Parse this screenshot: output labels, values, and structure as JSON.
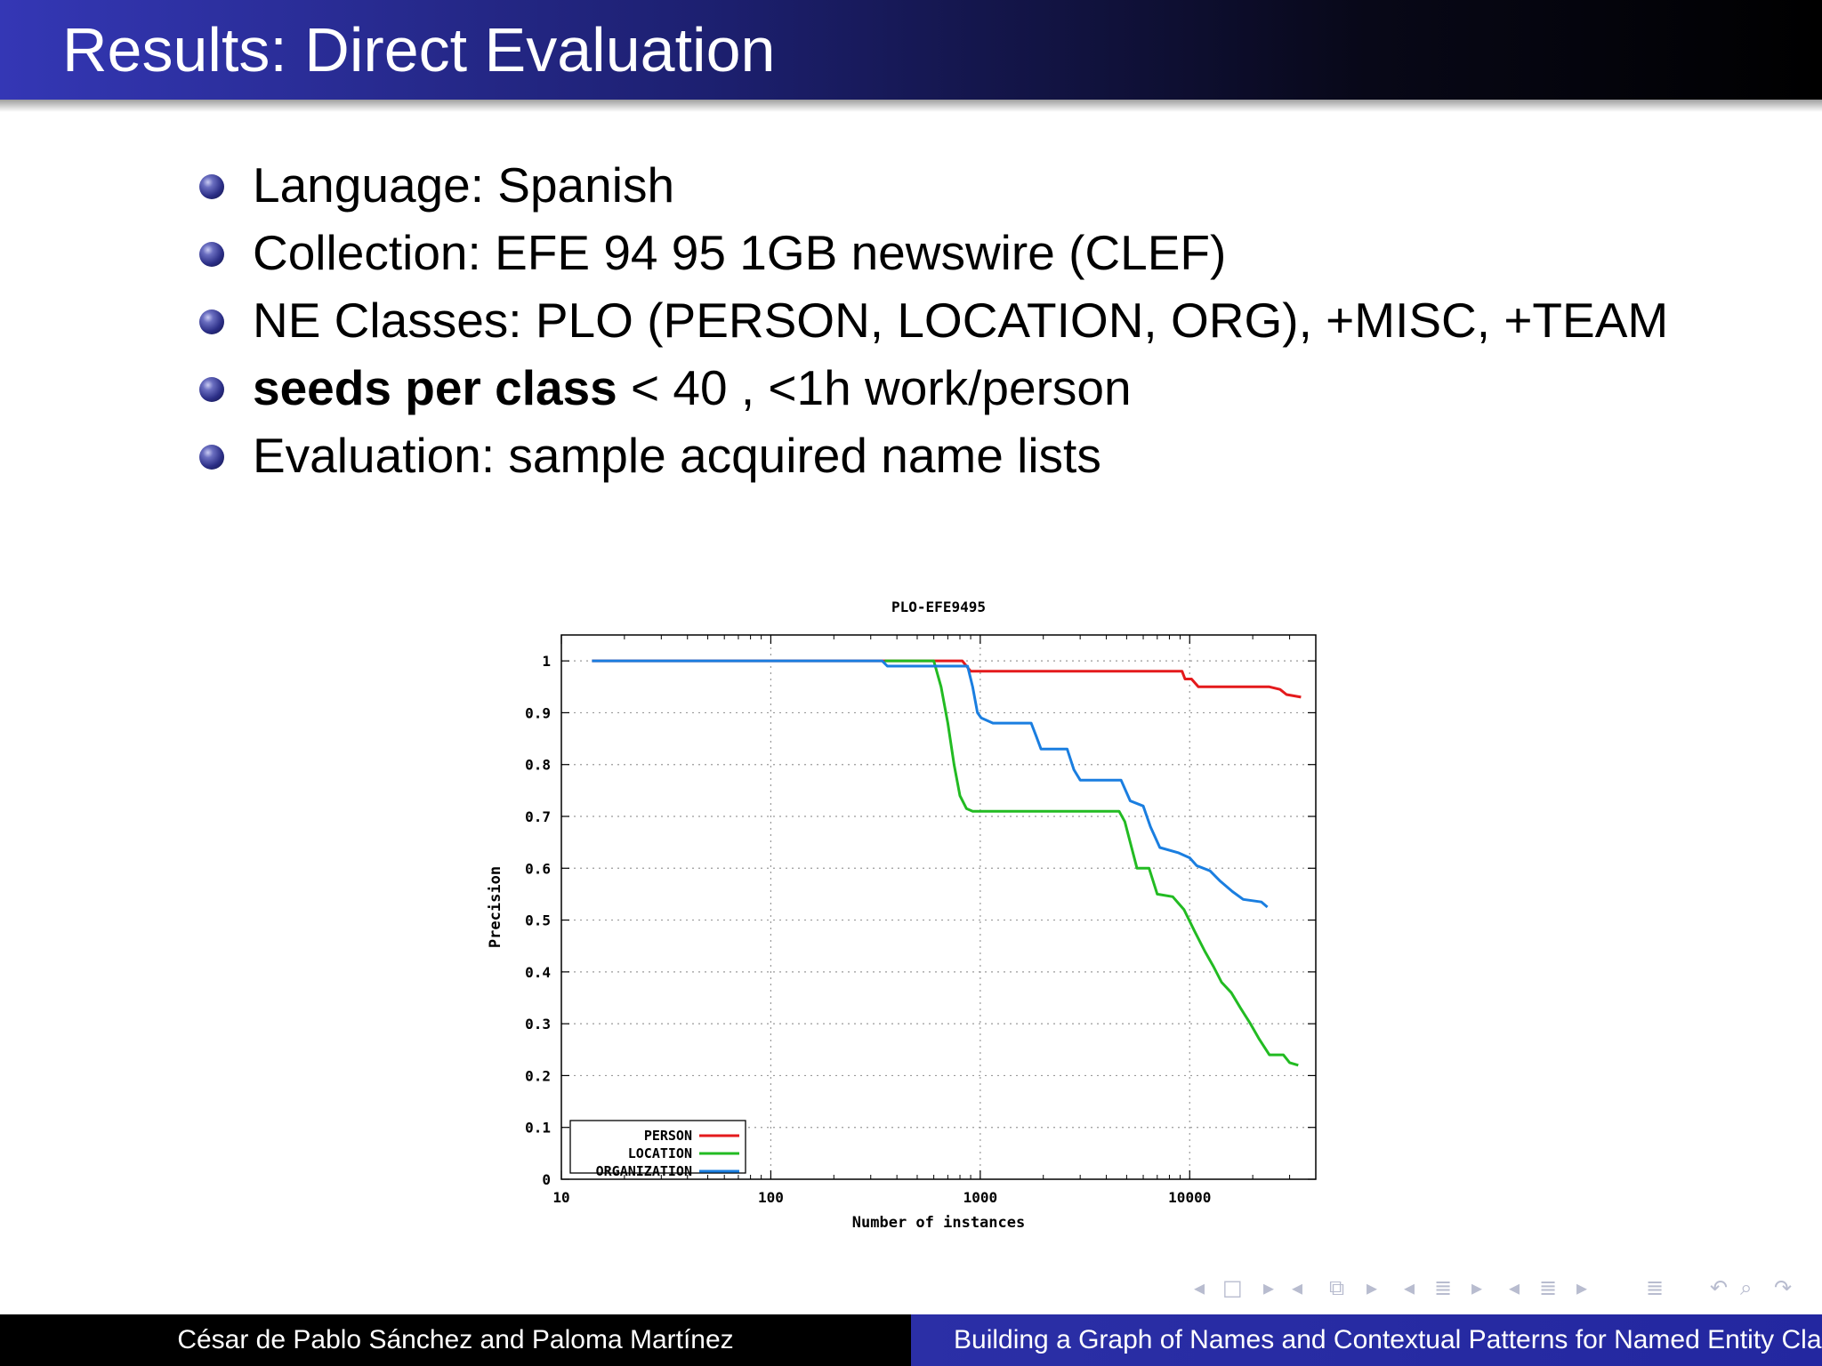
{
  "slide": {
    "title": "Results: Direct Evaluation"
  },
  "bullets": [
    {
      "text": "Language: Spanish"
    },
    {
      "text": "Collection: EFE 94 95  1GB newswire (CLEF)"
    },
    {
      "text": "NE Classes: PLO (PERSON, LOCATION, ORG), +MISC, +TEAM"
    },
    {
      "strong": "seeds per class",
      "text": " < 40 , <1h work/person"
    },
    {
      "text": "Evaluation: sample acquired name lists"
    }
  ],
  "chart_data": {
    "type": "line",
    "title": "PLO-EFE9495",
    "xlabel": "Number of instances",
    "ylabel": "Precision",
    "x_scale": "log",
    "xlim": [
      10,
      40000
    ],
    "ylim": [
      0,
      1.05
    ],
    "x_ticks": [
      10,
      100,
      1000,
      10000
    ],
    "x_tick_labels": [
      "10",
      "100",
      "1000",
      "10000"
    ],
    "y_ticks": [
      0,
      0.1,
      0.2,
      0.3,
      0.4,
      0.5,
      0.6,
      0.7,
      0.8,
      0.9,
      1
    ],
    "y_tick_labels": [
      "0",
      "0.1",
      "0.2",
      "0.3",
      "0.4",
      "0.5",
      "0.6",
      "0.7",
      "0.8",
      "0.9",
      "1"
    ],
    "grid": true,
    "legend_position": "bottom-left",
    "series": [
      {
        "name": "PERSON",
        "color": "#e41a1c",
        "points": [
          [
            14,
            1.0
          ],
          [
            820,
            1.0
          ],
          [
            900,
            0.98
          ],
          [
            9200,
            0.98
          ],
          [
            9500,
            0.965
          ],
          [
            10200,
            0.965
          ],
          [
            11000,
            0.95
          ],
          [
            24000,
            0.95
          ],
          [
            27000,
            0.945
          ],
          [
            29000,
            0.935
          ],
          [
            34000,
            0.93
          ]
        ]
      },
      {
        "name": "LOCATION",
        "color": "#22bb22",
        "points": [
          [
            350,
            1.0
          ],
          [
            600,
            1.0
          ],
          [
            650,
            0.95
          ],
          [
            700,
            0.88
          ],
          [
            750,
            0.8
          ],
          [
            800,
            0.74
          ],
          [
            860,
            0.715
          ],
          [
            920,
            0.71
          ],
          [
            4600,
            0.71
          ],
          [
            4900,
            0.69
          ],
          [
            5200,
            0.65
          ],
          [
            5600,
            0.6
          ],
          [
            6400,
            0.6
          ],
          [
            7000,
            0.55
          ],
          [
            8300,
            0.545
          ],
          [
            9400,
            0.52
          ],
          [
            10500,
            0.48
          ],
          [
            11800,
            0.44
          ],
          [
            13000,
            0.41
          ],
          [
            14200,
            0.38
          ],
          [
            15800,
            0.36
          ],
          [
            17500,
            0.33
          ],
          [
            19500,
            0.3
          ],
          [
            21500,
            0.27
          ],
          [
            24000,
            0.24
          ],
          [
            28000,
            0.24
          ],
          [
            30000,
            0.225
          ],
          [
            33000,
            0.22
          ]
        ]
      },
      {
        "name": "ORGANIZATION",
        "color": "#1a7ee0",
        "points": [
          [
            14,
            1.0
          ],
          [
            340,
            1.0
          ],
          [
            360,
            0.99
          ],
          [
            870,
            0.99
          ],
          [
            920,
            0.95
          ],
          [
            970,
            0.9
          ],
          [
            1010,
            0.89
          ],
          [
            1150,
            0.88
          ],
          [
            1750,
            0.88
          ],
          [
            1850,
            0.855
          ],
          [
            1950,
            0.83
          ],
          [
            2600,
            0.83
          ],
          [
            2800,
            0.79
          ],
          [
            3000,
            0.77
          ],
          [
            4700,
            0.77
          ],
          [
            5200,
            0.73
          ],
          [
            6000,
            0.72
          ],
          [
            6500,
            0.68
          ],
          [
            7200,
            0.64
          ],
          [
            8800,
            0.63
          ],
          [
            10000,
            0.62
          ],
          [
            10800,
            0.605
          ],
          [
            12500,
            0.595
          ],
          [
            14000,
            0.575
          ],
          [
            16000,
            0.555
          ],
          [
            18000,
            0.54
          ],
          [
            22000,
            0.535
          ],
          [
            23500,
            0.525
          ]
        ]
      }
    ]
  },
  "nav": {
    "icons": [
      {
        "name": "prev-arrow-icon",
        "glyph": "◂"
      },
      {
        "name": "frame-icon",
        "glyph": "□"
      },
      {
        "name": "next-arrow-icon",
        "glyph": "▸"
      },
      {
        "name": "prev-arrow-icon",
        "glyph": "◂"
      },
      {
        "name": "subsection-icon",
        "glyph": "⧉"
      },
      {
        "name": "next-arrow-icon",
        "glyph": "▸"
      },
      {
        "name": "prev-arrow-icon",
        "glyph": "◂"
      },
      {
        "name": "section-icon",
        "glyph": "≣"
      },
      {
        "name": "next-arrow-icon",
        "glyph": "▸"
      },
      {
        "name": "prev-arrow-icon",
        "glyph": "◂"
      },
      {
        "name": "section-icon",
        "glyph": "≣"
      },
      {
        "name": "next-arrow-icon",
        "glyph": "▸"
      },
      {
        "name": "toc-icon",
        "glyph": "≣"
      },
      {
        "name": "undo-icon",
        "glyph": "↶"
      },
      {
        "name": "search-icon",
        "glyph": "⌕"
      },
      {
        "name": "redo-icon",
        "glyph": "↷"
      }
    ]
  },
  "footer": {
    "authors": "César de Pablo Sánchez and Paloma Martínez",
    "talk_title": "Building a Graph of Names and Contextual Patterns for Named Entity Cla"
  }
}
